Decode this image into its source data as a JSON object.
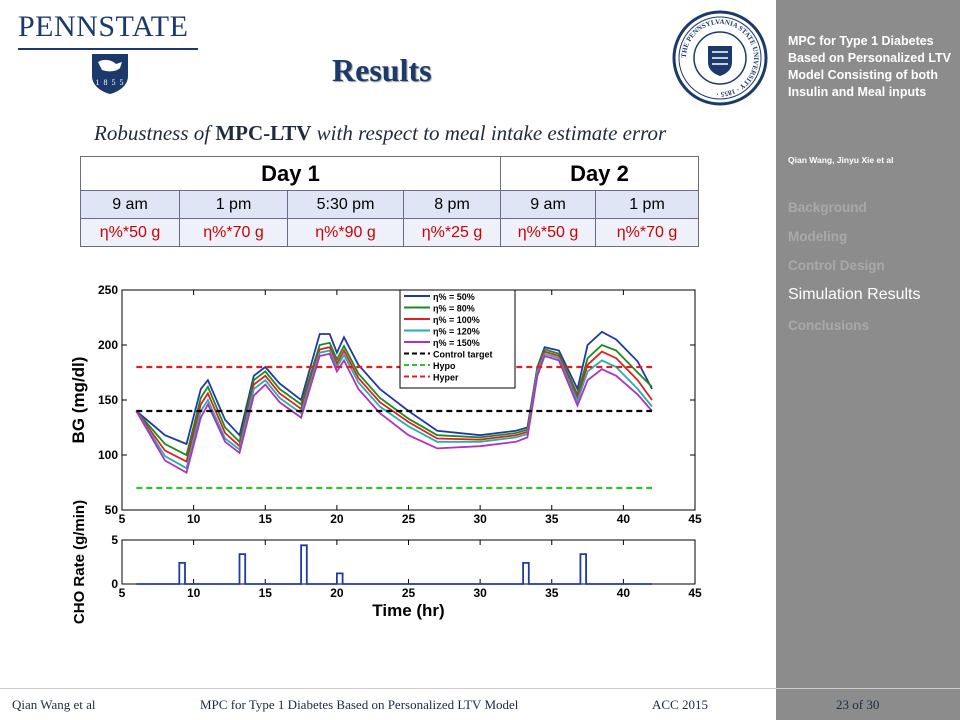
{
  "header": {
    "logo_text": "PENNSTATE",
    "logo_year": "1 8 5 5",
    "seal_text": "THE PENNSYLVANIA STATE UNIVERSITY · 1855 ·",
    "title": "Results",
    "subtitle_pre": "Robustness of ",
    "subtitle_bold": "MPC-LTV",
    "subtitle_post": " with respect to meal intake estimate error"
  },
  "table": {
    "days": [
      "Day 1",
      "Day 2"
    ],
    "times": [
      "9 am",
      "1 pm",
      "5:30 pm",
      "8 pm",
      "9 am",
      "1 pm"
    ],
    "amounts": [
      "η%*50 g",
      "η%*70 g",
      "η%*90 g",
      "η%*25 g",
      "η%*50 g",
      "η%*70 g"
    ]
  },
  "chart_data": [
    {
      "type": "line",
      "ylabel": "BG (mg/dl)",
      "xlim": [
        5,
        45
      ],
      "ylim": [
        50,
        250
      ],
      "xticks": [
        5,
        10,
        15,
        20,
        25,
        30,
        35,
        40,
        45
      ],
      "yticks": [
        50,
        100,
        150,
        200,
        250
      ],
      "legend_position": "top-center",
      "series": [
        {
          "name": "η% = 50%",
          "color": "#1f3aa8",
          "x": [
            6,
            8,
            9.5,
            10.5,
            11,
            12.2,
            13.2,
            14.2,
            15,
            16,
            17.5,
            18.8,
            19.5,
            20,
            20.5,
            21.5,
            23,
            25,
            27,
            30,
            32.5,
            33.3,
            34,
            34.5,
            35.5,
            36.8,
            37.5,
            38.5,
            39.5,
            41,
            42
          ],
          "y": [
            140,
            118,
            110,
            160,
            168,
            132,
            118,
            172,
            180,
            165,
            150,
            210,
            210,
            193,
            207,
            182,
            160,
            140,
            122,
            118,
            122,
            125,
            180,
            198,
            195,
            160,
            200,
            212,
            205,
            185,
            160
          ]
        },
        {
          "name": "η% = 80%",
          "color": "#1e8a1e",
          "x": [
            6,
            8,
            9.5,
            10.5,
            11,
            12.2,
            13.2,
            14.2,
            15,
            16,
            17.5,
            18.8,
            19.5,
            20,
            20.5,
            21.5,
            23,
            25,
            27,
            30,
            32.5,
            33.3,
            34,
            34.5,
            35.5,
            36.8,
            37.5,
            38.5,
            39.5,
            41,
            42
          ],
          "y": [
            140,
            110,
            100,
            152,
            162,
            125,
            112,
            168,
            176,
            160,
            146,
            200,
            202,
            187,
            199,
            174,
            152,
            133,
            118,
            116,
            120,
            123,
            180,
            196,
            192,
            155,
            188,
            200,
            195,
            175,
            162
          ]
        },
        {
          "name": "η% = 100%",
          "color": "#e02020",
          "x": [
            6,
            8,
            9.5,
            10.5,
            11,
            12.2,
            13.2,
            14.2,
            15,
            16,
            17.5,
            18.8,
            19.5,
            20,
            20.5,
            21.5,
            23,
            25,
            27,
            30,
            32.5,
            33.3,
            34,
            34.5,
            35.5,
            36.8,
            37.5,
            38.5,
            39.5,
            41,
            42
          ],
          "y": [
            140,
            104,
            94,
            146,
            156,
            120,
            108,
            164,
            172,
            156,
            142,
            196,
            198,
            183,
            195,
            170,
            148,
            130,
            115,
            114,
            118,
            121,
            178,
            194,
            190,
            152,
            182,
            194,
            188,
            168,
            150
          ]
        },
        {
          "name": "η% = 120%",
          "color": "#20b0b0",
          "x": [
            6,
            8,
            9.5,
            10.5,
            11,
            12.2,
            13.2,
            14.2,
            15,
            16,
            17.5,
            18.8,
            19.5,
            20,
            20.5,
            21.5,
            23,
            25,
            27,
            30,
            32.5,
            33.3,
            34,
            34.5,
            35.5,
            36.8,
            37.5,
            38.5,
            39.5,
            41,
            42
          ],
          "y": [
            140,
            99,
            88,
            140,
            150,
            115,
            105,
            160,
            168,
            152,
            138,
            193,
            195,
            180,
            191,
            166,
            144,
            126,
            112,
            112,
            116,
            119,
            176,
            192,
            188,
            149,
            176,
            186,
            180,
            160,
            144
          ]
        },
        {
          "name": "η% = 150%",
          "color": "#b030c0",
          "x": [
            6,
            8,
            9.5,
            10.5,
            11,
            12.2,
            13.2,
            14.2,
            15,
            16,
            17.5,
            18.8,
            19.5,
            20,
            20.5,
            21.5,
            23,
            25,
            27,
            30,
            32.5,
            33.3,
            34,
            34.5,
            35.5,
            36.8,
            37.5,
            38.5,
            39.5,
            41,
            42
          ],
          "y": [
            140,
            95,
            84,
            134,
            146,
            112,
            102,
            154,
            164,
            148,
            134,
            190,
            192,
            176,
            186,
            160,
            138,
            118,
            106,
            108,
            112,
            116,
            172,
            190,
            186,
            145,
            168,
            178,
            172,
            155,
            140
          ]
        },
        {
          "name": "Control target",
          "color": "#000000",
          "dash": true,
          "x": [
            6,
            42
          ],
          "y": [
            140,
            140
          ]
        },
        {
          "name": "Hypo",
          "color": "#30c030",
          "dash": true,
          "x": [
            6,
            42
          ],
          "y": [
            70,
            70
          ]
        },
        {
          "name": "Hyper",
          "color": "#e02020",
          "dash": true,
          "x": [
            6,
            42
          ],
          "y": [
            180,
            180
          ]
        }
      ]
    },
    {
      "type": "line",
      "xlabel": "Time (hr)",
      "ylabel": "CHO Rate (g/min)",
      "xlim": [
        5,
        45
      ],
      "ylim": [
        0,
        5
      ],
      "xticks": [
        5,
        10,
        15,
        20,
        25,
        30,
        35,
        40,
        45
      ],
      "yticks": [
        0,
        5
      ],
      "series": [
        {
          "color": "#1f3aa8",
          "x": [
            6,
            9,
            9,
            9.4,
            9.4,
            13.2,
            13.2,
            13.6,
            13.6,
            17.5,
            17.5,
            17.9,
            17.9,
            20,
            20,
            20.4,
            20.4,
            33,
            33,
            33.4,
            33.4,
            37,
            37,
            37.4,
            37.4,
            42
          ],
          "y": [
            0,
            0,
            2.4,
            2.4,
            0,
            0,
            3.4,
            3.4,
            0,
            0,
            4.4,
            4.4,
            0,
            0,
            1.2,
            1.2,
            0,
            0,
            2.4,
            2.4,
            0,
            0,
            3.4,
            3.4,
            0,
            0
          ]
        }
      ]
    }
  ],
  "sidebar": {
    "title": "MPC for Type 1 Diabetes Based on Personalized LTV Model Consisting of both Insulin and Meal inputs",
    "authors": "Qian Wang, Jinyu Xie et al",
    "nav": [
      "Background",
      "Modeling",
      "Control Design",
      "Simulation Results",
      "Conclusions"
    ],
    "active_index": 3
  },
  "footer": {
    "authors": "Qian Wang et al",
    "title": "MPC for Type 1 Diabetes Based on Personalized LTV Model",
    "conference": "ACC 2015",
    "page": "23 of 30"
  }
}
